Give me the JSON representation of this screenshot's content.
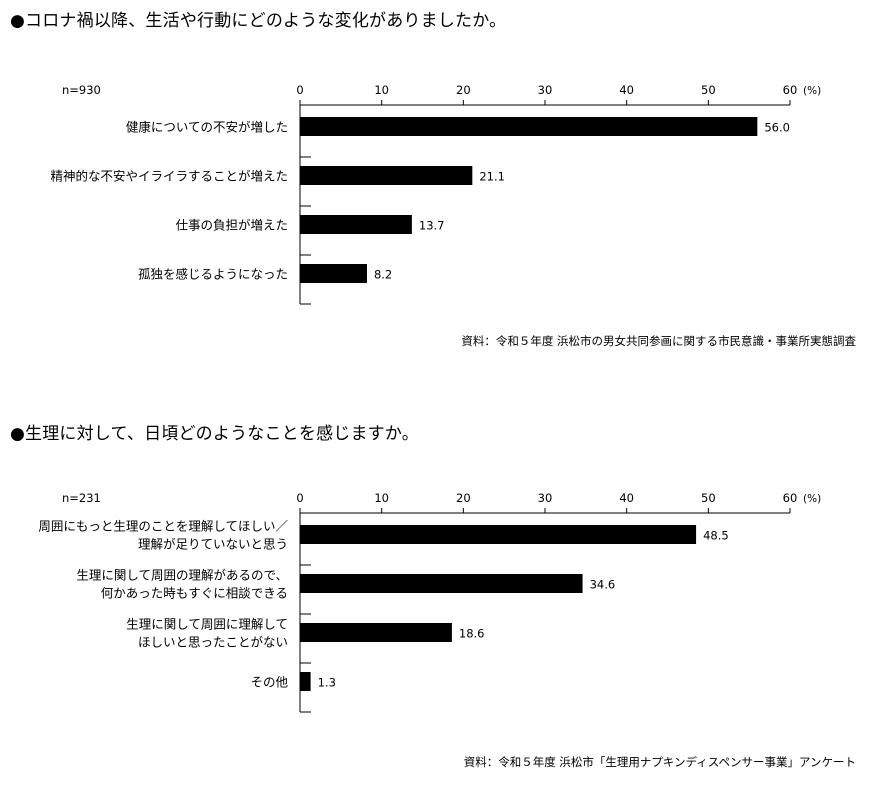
{
  "chart_data": [
    {
      "type": "bar",
      "orientation": "horizontal",
      "title": "●コロナ禍以降、生活や行動にどのような変化がありましたか。",
      "n_label": "n=930",
      "unit_label": "(%)",
      "xlim": [
        0,
        60
      ],
      "ticks": [
        0,
        10,
        20,
        30,
        40,
        50,
        60
      ],
      "grid": false,
      "categories": [
        [
          "健康についての不安が増した"
        ],
        [
          "精神的な不安やイライラすることが増えた"
        ],
        [
          "仕事の負担が増えた"
        ],
        [
          "孤独を感じるようになった"
        ]
      ],
      "values": [
        56.0,
        21.1,
        13.7,
        8.2
      ],
      "value_labels": [
        "56.0",
        "21.1",
        "13.7",
        "8.2"
      ],
      "bar_color": "#000000",
      "source": "資料：令和５年度 浜松市の男女共同参画に関する市民意識・事業所実態調査"
    },
    {
      "type": "bar",
      "orientation": "horizontal",
      "title": "●生理に対して、日頃どのようなことを感じますか。",
      "n_label": "n=231",
      "unit_label": "(%)",
      "xlim": [
        0,
        60
      ],
      "ticks": [
        0,
        10,
        20,
        30,
        40,
        50,
        60
      ],
      "grid": false,
      "categories": [
        [
          "周囲にもっと生理のことを理解してほしい／",
          "理解が足りていないと思う"
        ],
        [
          "生理に関して周囲の理解があるので、",
          "何かあった時もすぐに相談できる"
        ],
        [
          "生理に関して周囲に理解して",
          "ほしいと思ったことがない"
        ],
        [
          "その他"
        ]
      ],
      "values": [
        48.5,
        34.6,
        18.6,
        1.3
      ],
      "value_labels": [
        "48.5",
        "34.6",
        "18.6",
        "1.3"
      ],
      "bar_color": "#000000",
      "source": "資料：令和５年度 浜松市「生理用ナプキンディスペンサー事業」アンケート"
    }
  ]
}
